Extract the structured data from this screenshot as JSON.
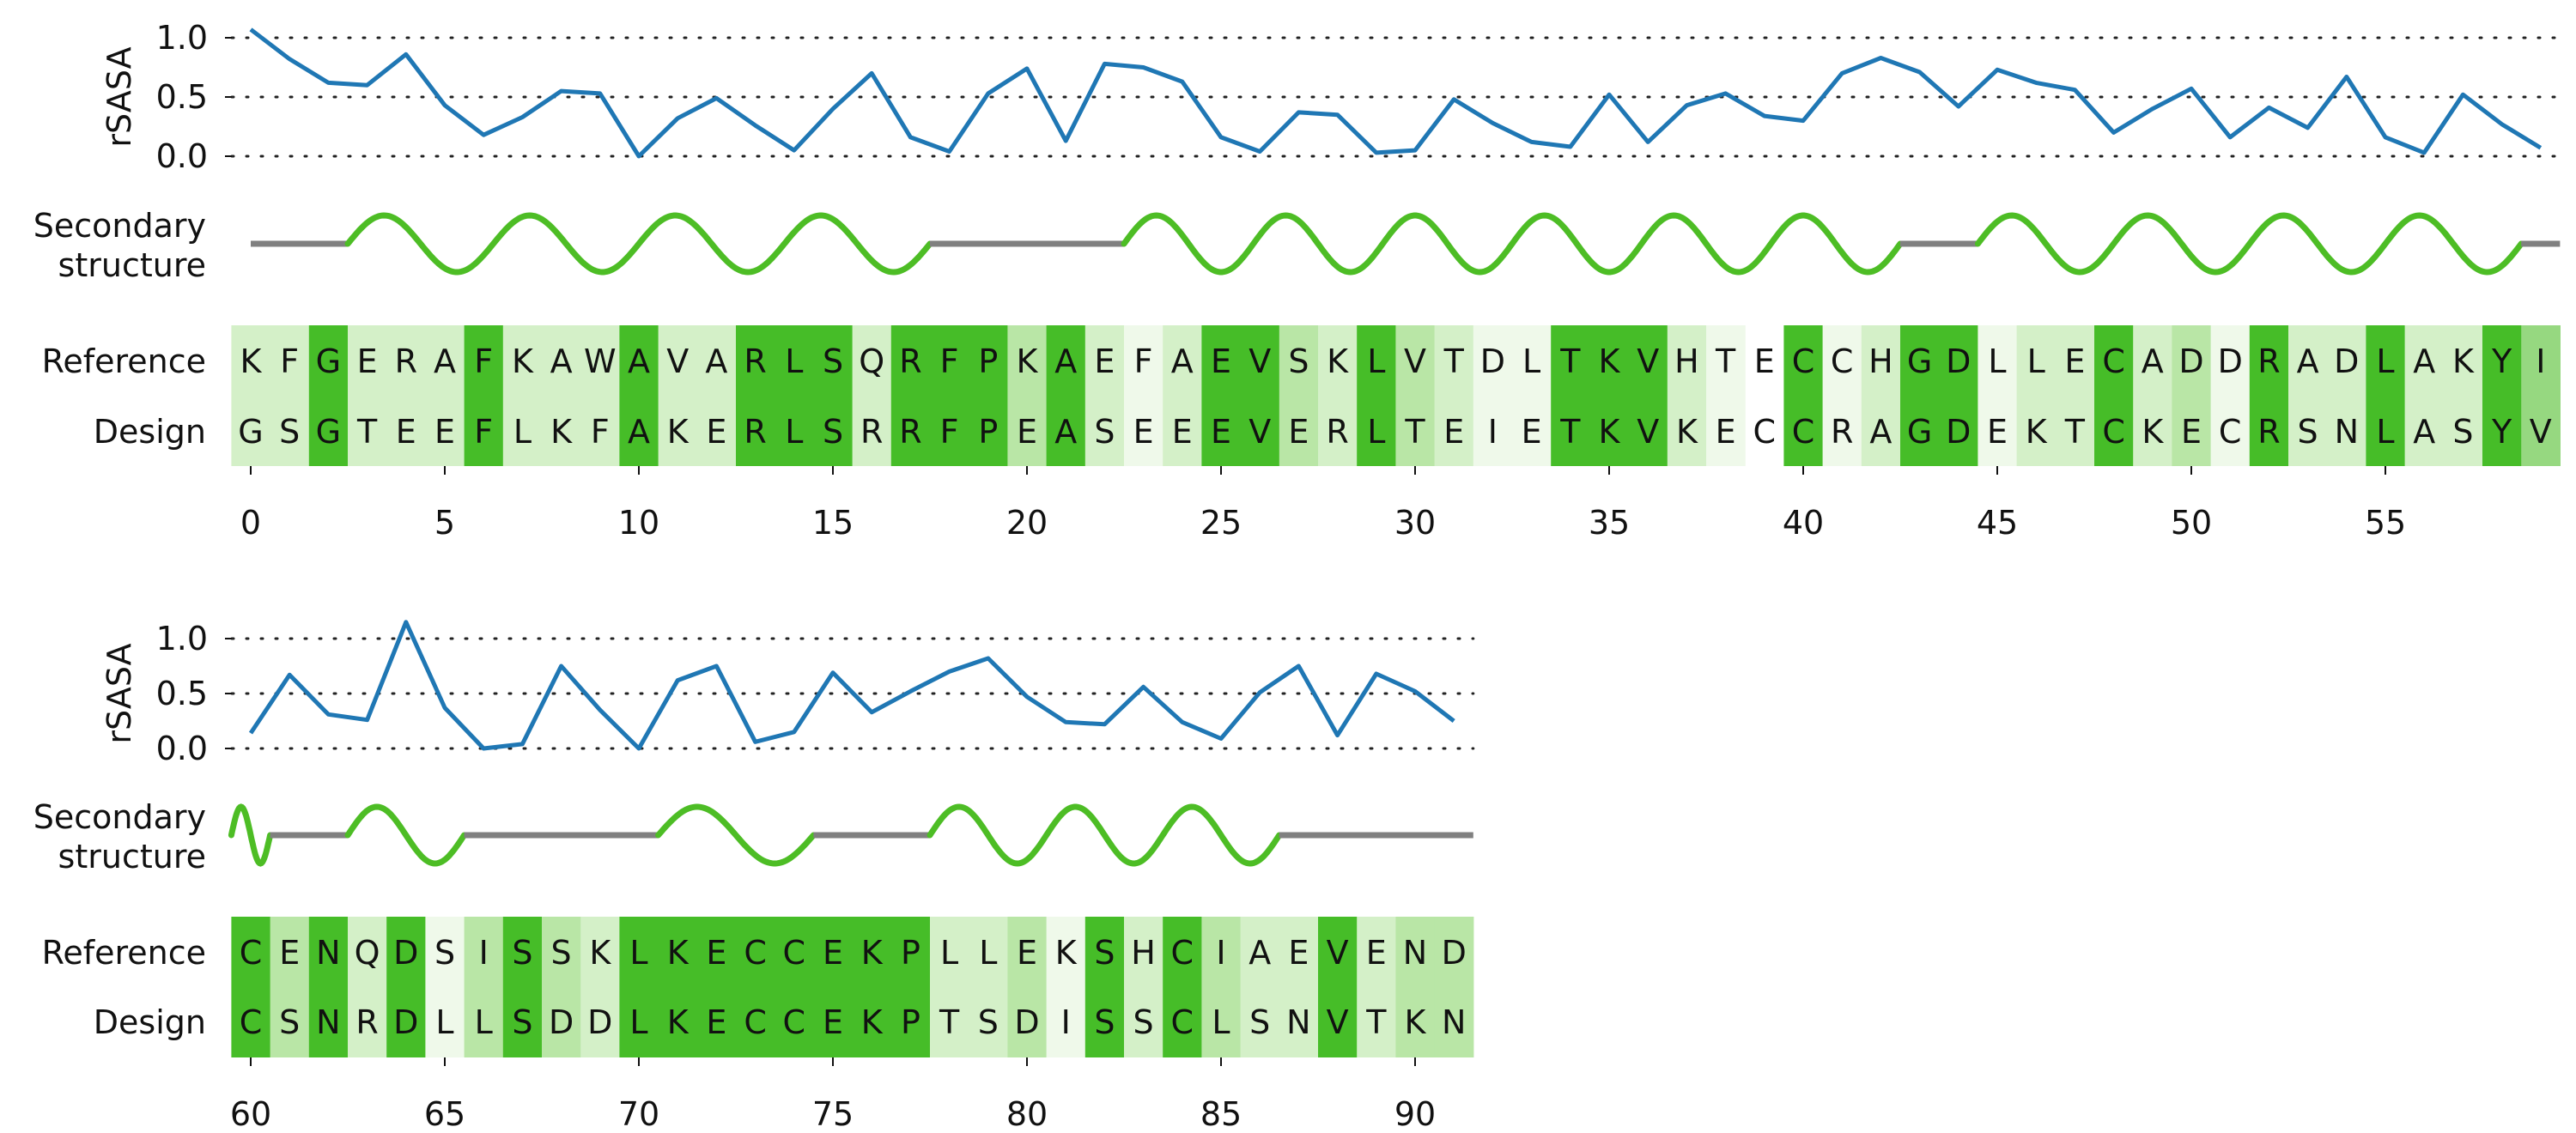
{
  "chart_data": {
    "type": "line",
    "rsasa_label": "rSASA",
    "ss_label_line1": "Secondary",
    "ss_label_line2": "structure",
    "reference_label": "Reference",
    "design_label": "Design",
    "yticks": [
      "1.0",
      "0.5",
      "0.0"
    ],
    "ylim": [
      0,
      1.0
    ],
    "panels": [
      {
        "start": 0,
        "end": 59,
        "xticks": [
          0,
          5,
          10,
          15,
          20,
          25,
          30,
          35,
          40,
          45,
          50,
          55
        ],
        "rsasa": [
          1.07,
          0.82,
          0.62,
          0.6,
          0.86,
          0.43,
          0.18,
          0.33,
          0.55,
          0.53,
          0.0,
          0.32,
          0.49,
          0.26,
          0.05,
          0.4,
          0.7,
          0.16,
          0.04,
          0.53,
          0.74,
          0.13,
          0.78,
          0.75,
          0.63,
          0.16,
          0.04,
          0.37,
          0.35,
          0.03,
          0.05,
          0.48,
          0.28,
          0.12,
          0.08,
          0.52,
          0.12,
          0.43,
          0.53,
          0.34,
          0.3,
          0.7,
          0.83,
          0.71,
          0.42,
          0.73,
          0.62,
          0.56,
          0.2,
          0.4,
          0.57,
          0.16,
          0.41,
          0.24,
          0.67,
          0.16,
          0.03,
          0.52,
          0.27,
          0.07
        ],
        "secondary_structure": [
          {
            "type": "coil",
            "start": 0,
            "end": 2.5
          },
          {
            "type": "helix",
            "start": 2.5,
            "end": 17.5
          },
          {
            "type": "coil",
            "start": 17.5,
            "end": 22.5
          },
          {
            "type": "helix",
            "start": 22.5,
            "end": 42.5
          },
          {
            "type": "coil",
            "start": 42.5,
            "end": 44.5
          },
          {
            "type": "helix",
            "start": 44.5,
            "end": 58.5
          },
          {
            "type": "coil",
            "start": 58.5,
            "end": 59.5
          }
        ],
        "reference": "KFGERAFKAWAVARLSQRFPKAEFAEVSKLVTDLTKVHTECCHGDLLECADDRADLAKYI",
        "design": "GSGTEEFLKFAKERLSRRFPEASEEEVERLTEIETKVKECCRAGDEKTCKECRSNLASYV",
        "similarity": [
          1,
          1,
          4,
          1,
          1,
          1,
          4,
          1,
          1,
          1,
          4,
          1,
          1,
          4,
          4,
          4,
          1,
          4,
          4,
          4,
          2,
          4,
          1,
          0,
          1,
          4,
          4,
          2,
          1,
          4,
          2,
          1,
          0,
          0,
          4,
          4,
          4,
          1,
          0,
          null,
          4,
          0,
          1,
          4,
          4,
          0,
          1,
          1,
          4,
          1,
          2,
          0,
          4,
          1,
          1,
          4,
          1,
          1,
          4,
          3
        ]
      },
      {
        "start": 60,
        "end": 91,
        "xticks": [
          60,
          65,
          70,
          75,
          80,
          85,
          90
        ],
        "rsasa": [
          0.14,
          0.67,
          0.31,
          0.26,
          1.15,
          0.37,
          0.0,
          0.04,
          0.75,
          0.35,
          0.0,
          0.62,
          0.75,
          0.06,
          0.15,
          0.69,
          0.33,
          0.52,
          0.7,
          0.82,
          0.47,
          0.24,
          0.22,
          0.56,
          0.24,
          0.09,
          0.51,
          0.75,
          0.12,
          0.68,
          0.52,
          0.25
        ],
        "secondary_structure": [
          {
            "type": "helix",
            "start": -0.5,
            "end": 0.5
          },
          {
            "type": "coil",
            "start": 0.5,
            "end": 2.5
          },
          {
            "type": "helix",
            "start": 2.5,
            "end": 5.5
          },
          {
            "type": "coil",
            "start": 5.5,
            "end": 10.5
          },
          {
            "type": "helix",
            "start": 10.5,
            "end": 14.5
          },
          {
            "type": "coil",
            "start": 14.5,
            "end": 17.5
          },
          {
            "type": "helix",
            "start": 17.5,
            "end": 26.5
          },
          {
            "type": "coil",
            "start": 26.5,
            "end": 31.5
          }
        ],
        "reference": "CENQDSISSKLKECCEKPLLEKSHCIAEVEND",
        "design": "CSNRDLLSDDLKECCEKPTSDISSCLSNVTKN",
        "similarity": [
          4,
          2,
          4,
          1,
          4,
          0,
          2,
          4,
          2,
          1,
          4,
          4,
          4,
          4,
          4,
          4,
          4,
          4,
          1,
          1,
          2,
          0,
          4,
          1,
          4,
          2,
          1,
          1,
          4,
          1,
          2,
          2
        ]
      }
    ],
    "colors": {
      "line": "#1f77b4",
      "helix": "#4dbd25",
      "coil": "#808080",
      "grid": "#222222",
      "sim_levels": [
        "#eff9ea",
        "#d4f0c8",
        "#b9e6a6",
        "#96d880",
        "#46bd28"
      ]
    }
  }
}
